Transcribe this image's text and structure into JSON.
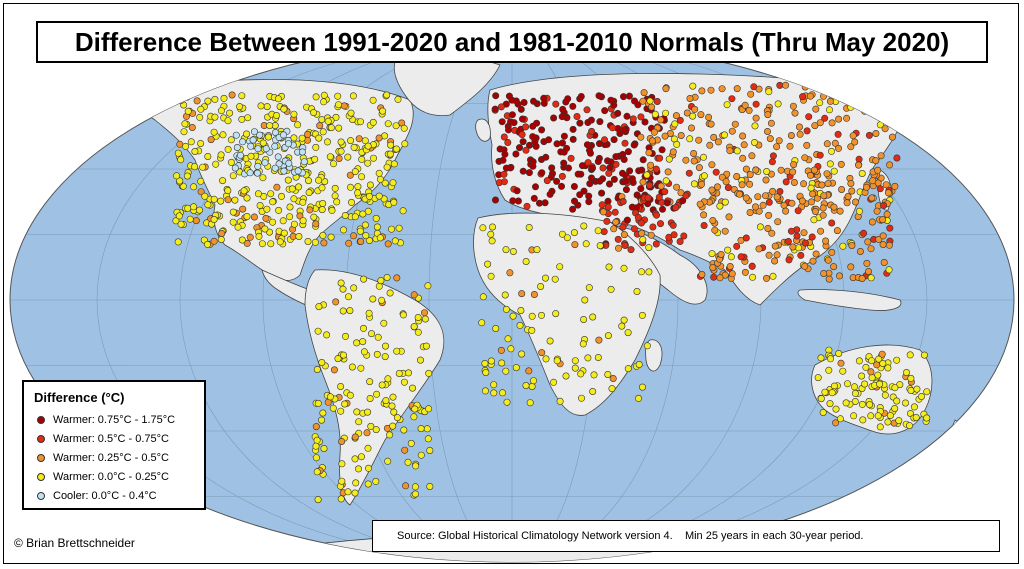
{
  "title": "Difference Between 1991-2020 and 1981-2010 Normals (Thru May 2020)",
  "legend": {
    "title": "Difference (°C)",
    "items": [
      {
        "label": "Warmer: 0.75°C - 1.75°C",
        "color": "#a80000"
      },
      {
        "label": "Warmer: 0.5°C - 0.75°C",
        "color": "#e22b12"
      },
      {
        "label": "Warmer: 0.25°C - 0.5°C",
        "color": "#f2922a"
      },
      {
        "label": "Warmer: 0.0°C - 0.25°C",
        "color": "#f4ec1c"
      },
      {
        "label": "Cooler: 0.0°C - 0.4°C",
        "color": "#bfe3f5"
      }
    ]
  },
  "source": "Source: Global Historical Climatology Network version 4.    Min 25 years in each 30-year period.",
  "copyright": "© Brian Brettschneider",
  "map": {
    "ocean_color": "#9fc2e4",
    "land_color": "#ececec",
    "station_regions": [
      {
        "region": "europe-west-russia",
        "dominant_category": 0
      },
      {
        "region": "siberia",
        "dominant_category": 2
      },
      {
        "region": "north-america",
        "dominant_category": 3
      },
      {
        "region": "north-american-northern-plains",
        "dominant_category": 4
      },
      {
        "region": "middle-east",
        "dominant_category": 1
      },
      {
        "region": "china",
        "dominant_category": 2
      },
      {
        "region": "south-america",
        "dominant_category": 3
      },
      {
        "region": "africa",
        "dominant_category": 3
      },
      {
        "region": "australia",
        "dominant_category": 3
      }
    ]
  }
}
